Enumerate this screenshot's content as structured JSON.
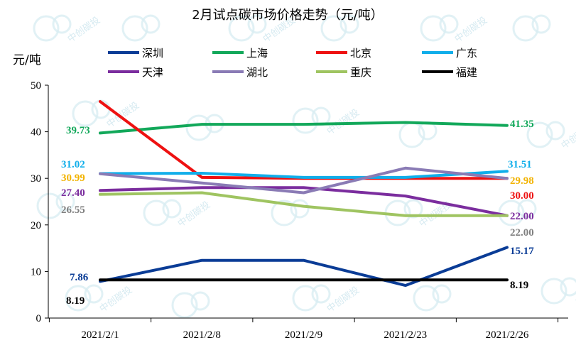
{
  "chart_data": {
    "type": "line",
    "title": "2月试点碳市场价格走势（元/吨）",
    "ylabel": "元/吨",
    "ylim": [
      0,
      50
    ],
    "yticks": [
      0,
      10,
      20,
      30,
      40,
      50
    ],
    "categories": [
      "2021/2/1",
      "2021/2/8",
      "2021/2/9",
      "2021/2/23",
      "2021/2/26"
    ],
    "legend_position": "top",
    "series": [
      {
        "name": "深圳",
        "color": "#0a3c96",
        "values": [
          7.86,
          12.4,
          12.4,
          7.0,
          15.17
        ]
      },
      {
        "name": "上海",
        "color": "#12a85a",
        "values": [
          39.73,
          41.6,
          41.6,
          42.0,
          41.35
        ]
      },
      {
        "name": "北京",
        "color": "#ee1111",
        "values": [
          46.5,
          30.2,
          30.0,
          30.0,
          30.0
        ]
      },
      {
        "name": "广东",
        "color": "#10aeea",
        "values": [
          31.02,
          31.1,
          30.2,
          30.2,
          31.51
        ]
      },
      {
        "name": "天津",
        "color": "#7b2d9e",
        "values": [
          27.4,
          28.0,
          28.0,
          26.2,
          22.0
        ]
      },
      {
        "name": "湖北",
        "color": "#8a7bb5",
        "values": [
          30.99,
          29.0,
          26.9,
          32.2,
          29.98
        ]
      },
      {
        "name": "重庆",
        "color": "#9fc461",
        "values": [
          26.55,
          26.9,
          24.0,
          22.0,
          22.0
        ]
      },
      {
        "name": "福建",
        "color": "#000000",
        "values": [
          8.19,
          8.19,
          8.19,
          8.19,
          8.19
        ]
      }
    ],
    "annotations": [
      {
        "text": "39.73",
        "color": "#12a85a"
      },
      {
        "text": "31.02",
        "color": "#10aeea"
      },
      {
        "text": "30.99",
        "color": "#f2b300"
      },
      {
        "text": "27.40",
        "color": "#7b2d9e"
      },
      {
        "text": "26.55",
        "color": "#808080"
      },
      {
        "text": "7.86",
        "color": "#0a3c96"
      },
      {
        "text": "8.19",
        "color": "#000000"
      },
      {
        "text": "41.35",
        "color": "#12a85a"
      },
      {
        "text": "31.51",
        "color": "#10aeea"
      },
      {
        "text": "29.98",
        "color": "#f2b300"
      },
      {
        "text": "30.00",
        "color": "#ee1111"
      },
      {
        "text": "22.00",
        "color": "#7b2d9e"
      },
      {
        "text": "22.00",
        "color": "#808080"
      },
      {
        "text": "15.17",
        "color": "#0a3c96"
      },
      {
        "text": "8.19",
        "color": "#000000"
      }
    ],
    "watermark_text": "中创碳投"
  }
}
